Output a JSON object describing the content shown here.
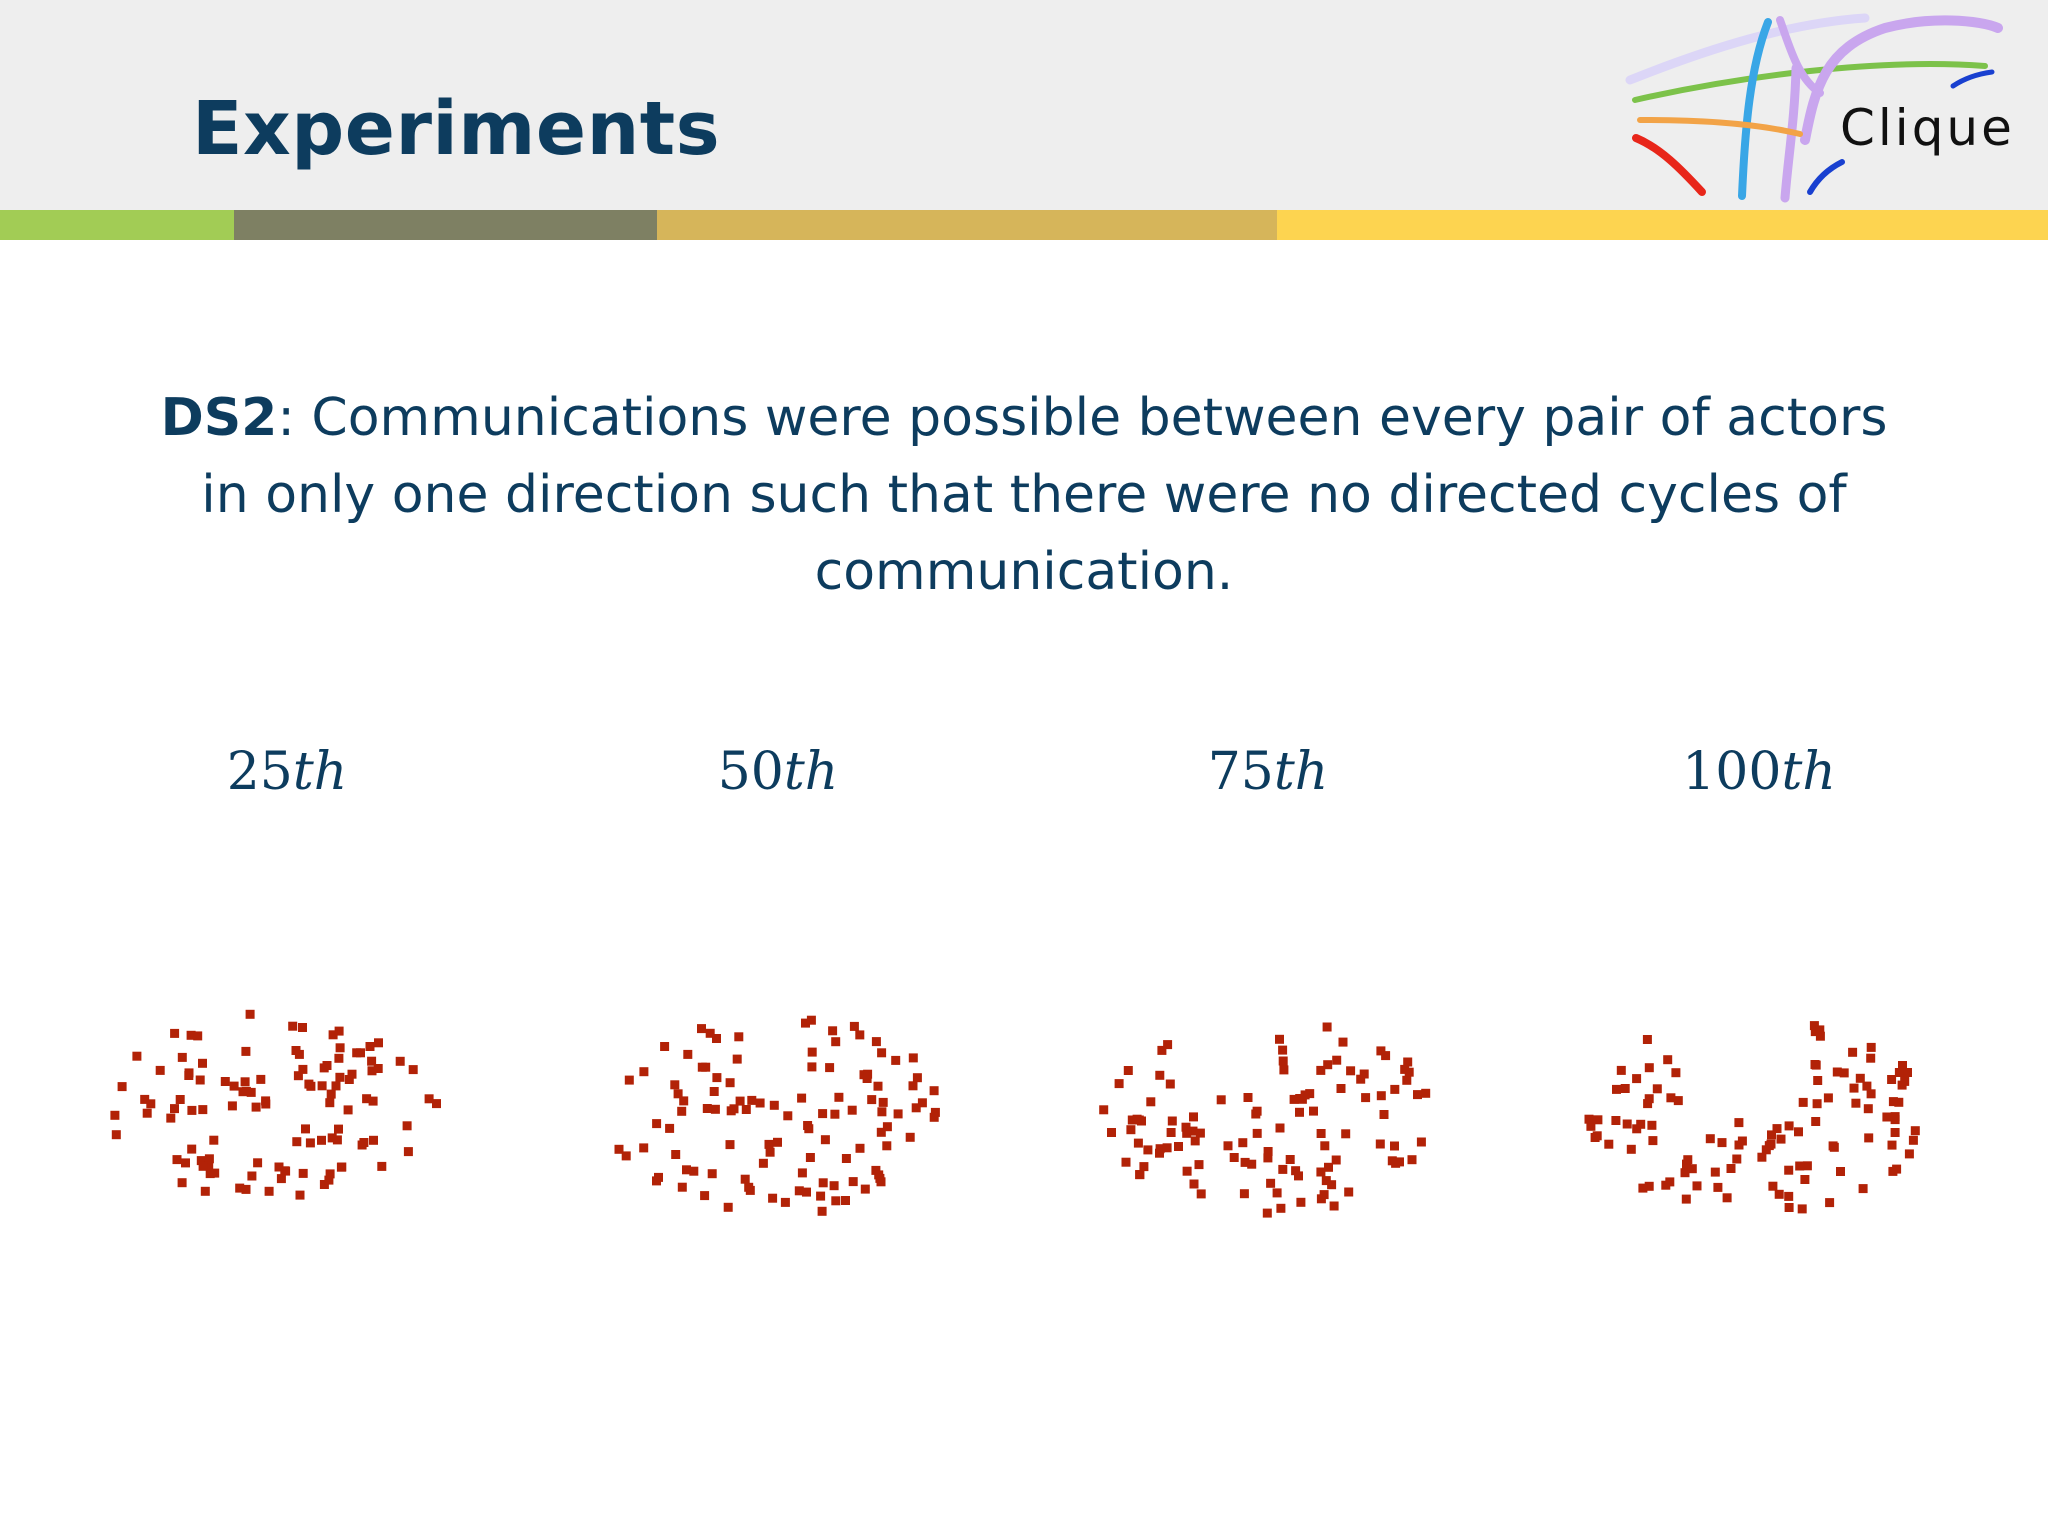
{
  "slide": {
    "title": "Experiments",
    "body_bold": "DS2",
    "body_rest": ":  Communications were possible between every pair of actors in only one direction such that there were no directed cycles of communication."
  },
  "logo": {
    "text": "Clique"
  },
  "colors": {
    "title": "#0d3c5e",
    "header_bg": "#eeeeee",
    "stripe": [
      "#a2cc55",
      "#7e8063",
      "#d6b55a",
      "#fdd450"
    ],
    "marker": "#b22207"
  },
  "panels": [
    {
      "number": "25",
      "suffix": "th"
    },
    {
      "number": "50",
      "suffix": "th"
    },
    {
      "number": "75",
      "suffix": "th"
    },
    {
      "number": "100",
      "suffix": "th"
    }
  ]
}
